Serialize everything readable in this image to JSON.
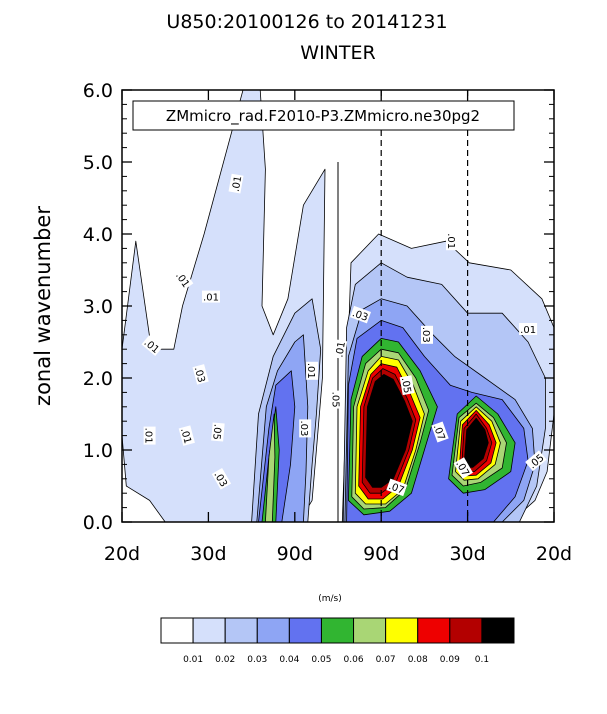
{
  "chart_data": {
    "type": "contour",
    "title_line1": "U850:20100126 to 20141231",
    "title_line2": "WINTER",
    "case_label": "ZMmicro_rad.F2010-P3.ZMmicro.ne30pg2",
    "ylabel": "zonal wavenumber",
    "ylim": [
      0.0,
      6.0
    ],
    "y_ticks": [
      "0.0",
      "1.0",
      "2.0",
      "3.0",
      "4.0",
      "5.0",
      "6.0"
    ],
    "x_ticks": [
      "20d",
      "30d",
      "90d",
      "90d",
      "30d",
      "20d"
    ],
    "colorbar_units": "(m/s)",
    "levels": [
      "0.01",
      "0.02",
      "0.03",
      "0.04",
      "0.05",
      "0.06",
      "0.07",
      "0.08",
      "0.09",
      "0.1"
    ],
    "fill_colors": [
      "#ffffff",
      "#d5e0fb",
      "#b4c6f6",
      "#8ea5f4",
      "#6272f0",
      "#31b531",
      "#a9d675",
      "#ffff00",
      "#ee0000",
      "#b30000",
      "#000000"
    ],
    "contour_labels": [
      ".01",
      ".01",
      ".01",
      ".01",
      ".01",
      ".01",
      ".01",
      ".01",
      ".01",
      ".01",
      ".03",
      ".03",
      ".03",
      ".03",
      ".03",
      ".05",
      ".05",
      ".05",
      ".07",
      ".07",
      ".07",
      ".05"
    ],
    "blobs": [
      {
        "level": 1,
        "points": [
          [
            0.0,
            2.4
          ],
          [
            0.16,
            3.9
          ],
          [
            0.34,
            2.4
          ],
          [
            0.6,
            2.4
          ],
          [
            0.7,
            3.0
          ],
          [
            0.95,
            4.0
          ],
          [
            1.4,
            6.0
          ],
          [
            1.6,
            6.0
          ],
          [
            1.66,
            4.9
          ],
          [
            1.62,
            3.0
          ],
          [
            1.75,
            2.6
          ],
          [
            1.92,
            3.1
          ],
          [
            2.1,
            4.4
          ],
          [
            2.35,
            4.9
          ],
          [
            2.32,
            2.0
          ],
          [
            2.25,
            1.0
          ],
          [
            2.2,
            0.3
          ],
          [
            2.05,
            0.0
          ],
          [
            0.5,
            0.0
          ],
          [
            0.32,
            0.3
          ],
          [
            0.05,
            0.5
          ],
          [
            0.0,
            1.2
          ]
        ]
      },
      {
        "level": 1,
        "points": [
          [
            2.55,
            0.0
          ],
          [
            2.65,
            3.6
          ],
          [
            2.97,
            4.0
          ],
          [
            3.35,
            3.8
          ],
          [
            3.75,
            3.9
          ],
          [
            4.02,
            3.6
          ],
          [
            4.5,
            3.5
          ],
          [
            4.86,
            3.1
          ],
          [
            5.0,
            2.7
          ],
          [
            5.0,
            1.5
          ],
          [
            4.92,
            0.7
          ],
          [
            4.78,
            0.3
          ],
          [
            4.5,
            0.0
          ]
        ]
      },
      {
        "level": 2,
        "points": [
          [
            1.5,
            0.0
          ],
          [
            1.58,
            1.5
          ],
          [
            1.75,
            2.3
          ],
          [
            2.0,
            2.9
          ],
          [
            2.2,
            3.1
          ],
          [
            2.3,
            2.4
          ],
          [
            2.25,
            1.5
          ],
          [
            2.2,
            0.8
          ],
          [
            2.15,
            0.0
          ]
        ]
      },
      {
        "level": 2,
        "points": [
          [
            2.56,
            0.0
          ],
          [
            2.6,
            2.7
          ],
          [
            2.7,
            3.3
          ],
          [
            3.0,
            3.6
          ],
          [
            3.3,
            3.4
          ],
          [
            3.7,
            3.3
          ],
          [
            4.0,
            2.9
          ],
          [
            4.4,
            2.9
          ],
          [
            4.7,
            2.5
          ],
          [
            4.9,
            2.0
          ],
          [
            4.9,
            1.3
          ],
          [
            4.8,
            0.5
          ],
          [
            4.6,
            0.0
          ]
        ]
      },
      {
        "level": 3,
        "points": [
          [
            1.56,
            0.0
          ],
          [
            1.67,
            1.6
          ],
          [
            1.8,
            2.1
          ],
          [
            2.0,
            2.5
          ],
          [
            2.1,
            2.6
          ],
          [
            2.15,
            1.6
          ],
          [
            2.13,
            0.7
          ],
          [
            2.1,
            0.0
          ]
        ]
      },
      {
        "level": 3,
        "points": [
          [
            2.58,
            0.0
          ],
          [
            2.62,
            2.3
          ],
          [
            2.78,
            2.95
          ],
          [
            3.0,
            3.1
          ],
          [
            3.3,
            3.0
          ],
          [
            3.6,
            2.6
          ],
          [
            3.85,
            2.3
          ],
          [
            4.2,
            2.0
          ],
          [
            4.55,
            1.7
          ],
          [
            4.75,
            1.3
          ],
          [
            4.78,
            0.8
          ],
          [
            4.65,
            0.3
          ],
          [
            4.4,
            0.0
          ]
        ]
      },
      {
        "level": 4,
        "points": [
          [
            1.58,
            0.0
          ],
          [
            1.7,
            1.3
          ],
          [
            1.78,
            1.9
          ],
          [
            1.96,
            2.1
          ],
          [
            2.0,
            1.6
          ],
          [
            1.95,
            0.8
          ],
          [
            1.85,
            0.0
          ]
        ]
      },
      {
        "level": 4,
        "points": [
          [
            2.6,
            0.0
          ],
          [
            2.62,
            1.9
          ],
          [
            2.72,
            2.55
          ],
          [
            3.0,
            2.8
          ],
          [
            3.25,
            2.7
          ],
          [
            3.5,
            2.3
          ],
          [
            3.8,
            1.9
          ],
          [
            4.05,
            1.8
          ],
          [
            4.4,
            1.7
          ],
          [
            4.65,
            1.3
          ],
          [
            4.7,
            0.85
          ],
          [
            4.55,
            0.35
          ],
          [
            4.3,
            0.0
          ]
        ]
      },
      {
        "level": 5,
        "points": [
          [
            1.62,
            0.0
          ],
          [
            1.7,
            0.9
          ],
          [
            1.78,
            1.6
          ],
          [
            1.82,
            1.0
          ],
          [
            1.78,
            0.0
          ]
        ]
      },
      {
        "level": 5,
        "points": [
          [
            2.62,
            0.3
          ],
          [
            2.65,
            1.7
          ],
          [
            2.78,
            2.3
          ],
          [
            3.0,
            2.55
          ],
          [
            3.2,
            2.5
          ],
          [
            3.45,
            2.1
          ],
          [
            3.65,
            1.6
          ],
          [
            3.55,
            1.2
          ],
          [
            3.35,
            0.4
          ],
          [
            3.1,
            0.15
          ],
          [
            2.8,
            0.1
          ]
        ]
      },
      {
        "level": 5,
        "points": [
          [
            3.78,
            0.6
          ],
          [
            3.88,
            1.5
          ],
          [
            4.1,
            1.75
          ],
          [
            4.35,
            1.5
          ],
          [
            4.55,
            1.1
          ],
          [
            4.5,
            0.7
          ],
          [
            4.2,
            0.45
          ],
          [
            3.95,
            0.4
          ]
        ]
      },
      {
        "level": 6,
        "points": [
          [
            1.66,
            0.0
          ],
          [
            1.7,
            0.9
          ],
          [
            1.76,
            1.5
          ],
          [
            1.77,
            0.9
          ],
          [
            1.74,
            0.0
          ]
        ]
      },
      {
        "level": 6,
        "points": [
          [
            2.66,
            0.35
          ],
          [
            2.68,
            1.6
          ],
          [
            2.82,
            2.2
          ],
          [
            3.0,
            2.4
          ],
          [
            3.2,
            2.35
          ],
          [
            3.4,
            2.0
          ],
          [
            3.55,
            1.55
          ],
          [
            3.45,
            1.1
          ],
          [
            3.28,
            0.45
          ],
          [
            3.05,
            0.2
          ],
          [
            2.8,
            0.18
          ]
        ]
      },
      {
        "level": 6,
        "points": [
          [
            3.82,
            0.65
          ],
          [
            3.9,
            1.45
          ],
          [
            4.1,
            1.65
          ],
          [
            4.3,
            1.45
          ],
          [
            4.45,
            1.1
          ],
          [
            4.4,
            0.75
          ],
          [
            4.15,
            0.55
          ],
          [
            3.95,
            0.5
          ]
        ]
      },
      {
        "level": 7,
        "points": [
          [
            2.7,
            0.4
          ],
          [
            2.72,
            1.6
          ],
          [
            2.85,
            2.1
          ],
          [
            3.0,
            2.3
          ],
          [
            3.2,
            2.25
          ],
          [
            3.37,
            1.9
          ],
          [
            3.5,
            1.5
          ],
          [
            3.4,
            1.0
          ],
          [
            3.25,
            0.45
          ],
          [
            3.05,
            0.25
          ],
          [
            2.82,
            0.25
          ]
        ]
      },
      {
        "level": 7,
        "points": [
          [
            3.86,
            0.7
          ],
          [
            3.92,
            1.4
          ],
          [
            4.1,
            1.6
          ],
          [
            4.28,
            1.4
          ],
          [
            4.38,
            1.1
          ],
          [
            4.32,
            0.8
          ],
          [
            4.12,
            0.6
          ],
          [
            3.96,
            0.58
          ]
        ]
      },
      {
        "level": 8,
        "points": [
          [
            2.74,
            0.5
          ],
          [
            2.76,
            1.6
          ],
          [
            2.88,
            2.05
          ],
          [
            3.0,
            2.2
          ],
          [
            3.18,
            2.15
          ],
          [
            3.33,
            1.8
          ],
          [
            3.45,
            1.45
          ],
          [
            3.36,
            1.0
          ],
          [
            3.2,
            0.5
          ],
          [
            3.02,
            0.32
          ],
          [
            2.85,
            0.32
          ]
        ]
      },
      {
        "level": 8,
        "points": [
          [
            3.9,
            0.7
          ],
          [
            3.94,
            1.35
          ],
          [
            4.1,
            1.55
          ],
          [
            4.25,
            1.35
          ],
          [
            4.33,
            1.1
          ],
          [
            4.27,
            0.82
          ],
          [
            4.1,
            0.65
          ],
          [
            3.98,
            0.64
          ]
        ]
      },
      {
        "level": 9,
        "points": [
          [
            2.78,
            0.55
          ],
          [
            2.8,
            1.6
          ],
          [
            2.9,
            2.0
          ],
          [
            3.02,
            2.13
          ],
          [
            3.16,
            2.05
          ],
          [
            3.3,
            1.72
          ],
          [
            3.4,
            1.42
          ],
          [
            3.32,
            1.0
          ],
          [
            3.17,
            0.55
          ],
          [
            3.0,
            0.4
          ],
          [
            2.87,
            0.4
          ]
        ]
      },
      {
        "level": 9,
        "points": [
          [
            3.93,
            0.75
          ],
          [
            3.96,
            1.3
          ],
          [
            4.1,
            1.5
          ],
          [
            4.22,
            1.3
          ],
          [
            4.28,
            1.1
          ],
          [
            4.22,
            0.85
          ],
          [
            4.08,
            0.7
          ],
          [
            3.99,
            0.7
          ]
        ]
      },
      {
        "level": 10,
        "points": [
          [
            2.82,
            0.62
          ],
          [
            2.84,
            1.6
          ],
          [
            2.93,
            1.95
          ],
          [
            3.03,
            2.05
          ],
          [
            3.14,
            1.98
          ],
          [
            3.27,
            1.68
          ],
          [
            3.36,
            1.4
          ],
          [
            3.28,
            1.0
          ],
          [
            3.14,
            0.6
          ],
          [
            3.0,
            0.48
          ],
          [
            2.9,
            0.48
          ]
        ]
      },
      {
        "level": 10,
        "points": [
          [
            3.96,
            0.8
          ],
          [
            3.99,
            1.28
          ],
          [
            4.1,
            1.44
          ],
          [
            4.2,
            1.28
          ],
          [
            4.24,
            1.1
          ],
          [
            4.18,
            0.88
          ],
          [
            4.06,
            0.76
          ],
          [
            4.0,
            0.76
          ]
        ]
      }
    ]
  }
}
